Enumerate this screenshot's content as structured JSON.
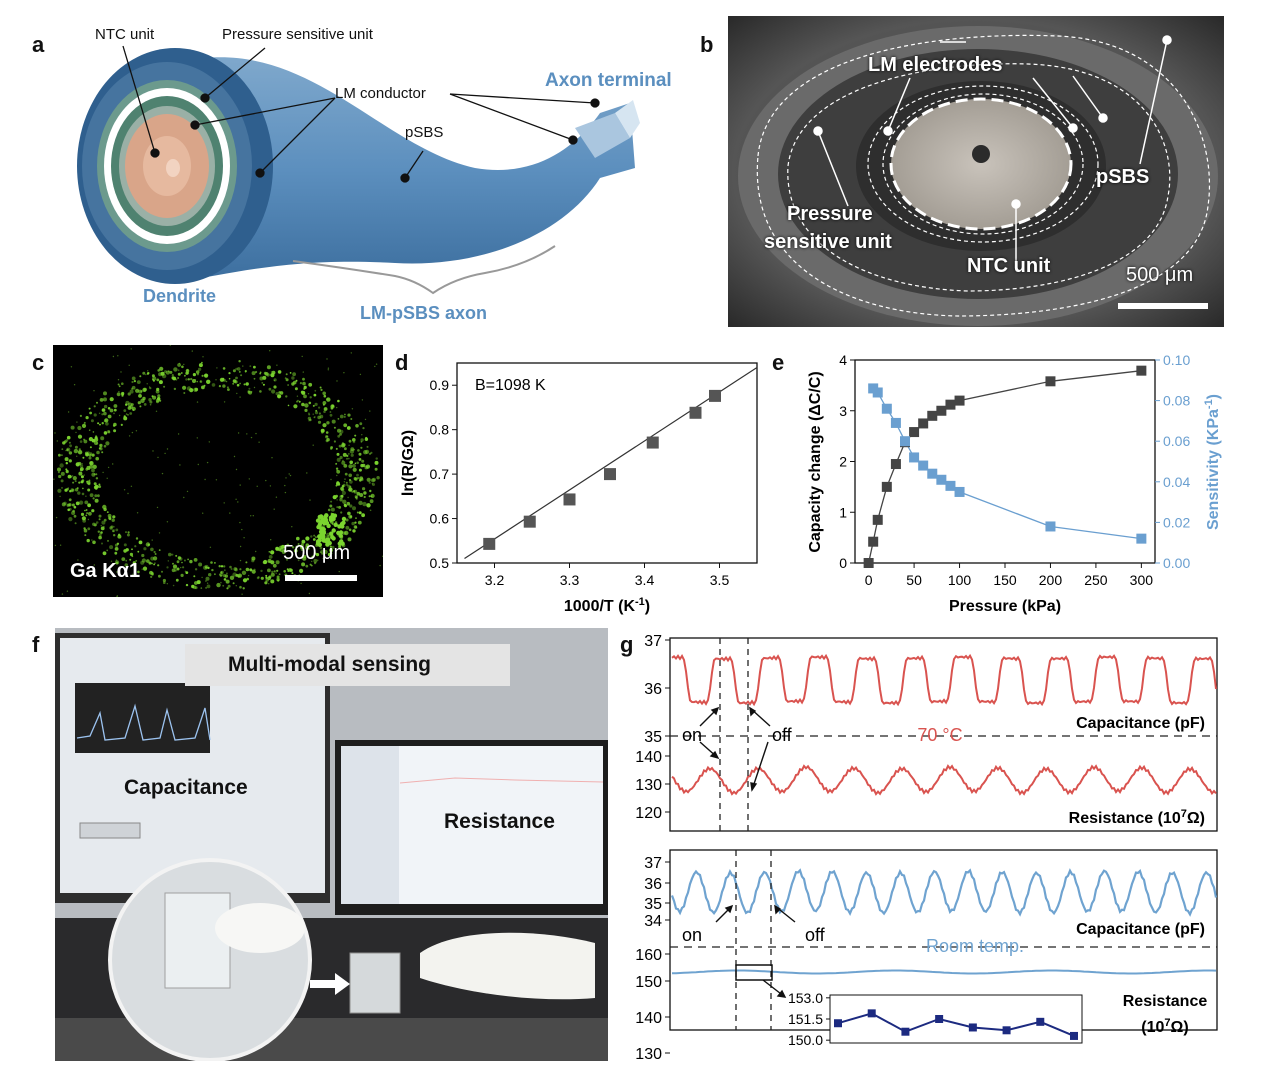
{
  "panels": {
    "a": {
      "letter": "a",
      "labels": {
        "ntc_unit": "NTC unit",
        "pressure_unit": "Pressure sensitive unit",
        "lm_conductor": "LM conductor",
        "axon_terminal": "Axon terminal",
        "psbs": "pSBS",
        "dendrite": "Dendrite",
        "axon": "LM-pSBS axon"
      }
    },
    "b": {
      "letter": "b",
      "labels": {
        "lm_electrodes": "LM electrodes",
        "psbs": "pSBS",
        "pressure_unit_1": "Pressure",
        "pressure_unit_2": "sensitive unit",
        "ntc_unit": "NTC unit",
        "scale": "500 μm"
      }
    },
    "c": {
      "letter": "c",
      "labels": {
        "element": "Ga Kα1",
        "scale": "500 μm"
      }
    },
    "d": {
      "letter": "d"
    },
    "e": {
      "letter": "e"
    },
    "f": {
      "letter": "f",
      "labels": {
        "banner": "Multi-modal sensing",
        "capacitance": "Capacitance",
        "resistance": "Resistance"
      }
    },
    "g": {
      "letter": "g",
      "top": {
        "temp_label": "70 °C",
        "on": "on",
        "off": "off",
        "cap_label": "Capacitance (pF)",
        "res_label": "Resistance (10",
        "res_sup": "7",
        "res_unit": "Ω)"
      },
      "bottom": {
        "temp_label": "Room temp.",
        "on": "on",
        "off": "off",
        "cap_label": "Capacitance (pF)",
        "res_label_1": "Resistance",
        "res_label_2": "(10",
        "res_sup": "7",
        "res_unit": "Ω)"
      }
    }
  },
  "chart_data": [
    {
      "id": "d",
      "type": "scatter",
      "annotation": "B=1098 K",
      "xlabel": "1000/T (K",
      "xlabel_sup": "-1",
      "xlabel_end": ")",
      "ylabel": "ln(R/GΩ)",
      "xlim": [
        3.15,
        3.55
      ],
      "ylim": [
        0.5,
        0.95
      ],
      "xticks": [
        3.2,
        3.3,
        3.4,
        3.5
      ],
      "yticks": [
        0.5,
        0.6,
        0.7,
        0.8,
        0.9
      ],
      "x": [
        3.193,
        3.247,
        3.3,
        3.354,
        3.411,
        3.468,
        3.494
      ],
      "y": [
        0.543,
        0.593,
        0.643,
        0.7,
        0.771,
        0.838,
        0.876
      ],
      "fit": [
        [
          3.16,
          0.51
        ],
        [
          3.55,
          0.94
        ]
      ],
      "colors": {
        "marker": "#555555",
        "line": "#333333"
      }
    },
    {
      "id": "e",
      "type": "line",
      "xlabel": "Pressure (kPa)",
      "ylabel": "Capacity change (ΔC/C)",
      "ylabel2": "Sensitivity (KPa",
      "ylabel2_sup": "-1",
      "ylabel2_end": ")",
      "xlim": [
        -15,
        315
      ],
      "ylim": [
        0,
        4.0
      ],
      "ylim2": [
        0,
        0.1
      ],
      "xticks": [
        0,
        50,
        100,
        150,
        200,
        250,
        300
      ],
      "yticks": [
        0,
        1,
        2,
        3,
        4
      ],
      "yticks2": [
        "0.00",
        "0.02",
        "0.04",
        "0.06",
        "0.08",
        "0.10"
      ],
      "series": [
        {
          "axis": "left",
          "color": "#444444",
          "x": [
            0,
            5,
            10,
            20,
            30,
            40,
            50,
            60,
            70,
            80,
            90,
            100,
            200,
            300
          ],
          "y": [
            0,
            0.42,
            0.85,
            1.5,
            1.95,
            2.38,
            2.58,
            2.75,
            2.9,
            3.0,
            3.12,
            3.2,
            3.58,
            3.79
          ]
        },
        {
          "axis": "right",
          "color": "#6a9fd0",
          "x": [
            5,
            10,
            20,
            30,
            40,
            50,
            60,
            70,
            80,
            90,
            100,
            200,
            300
          ],
          "y": [
            0.086,
            0.084,
            0.076,
            0.069,
            0.06,
            0.052,
            0.048,
            0.044,
            0.041,
            0.038,
            0.035,
            0.018,
            0.012
          ]
        }
      ]
    },
    {
      "id": "g-top",
      "type": "line",
      "colors": {
        "line": "#d9534f"
      },
      "cap_yticks": [
        35,
        36,
        37
      ],
      "res_yticks": [
        120,
        130,
        140
      ],
      "dashed_vertical_labels": [
        "on",
        "off"
      ]
    },
    {
      "id": "g-bottom",
      "type": "line",
      "colors": {
        "line": "#6fa3d0",
        "inset": "#1c2a80"
      },
      "cap_yticks": [
        34,
        35,
        36,
        37
      ],
      "res_yticks": [
        130,
        140,
        150,
        160
      ],
      "inset_yticks": [
        "150.0",
        "151.5",
        "153.0"
      ],
      "inset_values": [
        151.2,
        151.9,
        150.6,
        151.5,
        150.9,
        150.7,
        151.3,
        150.3
      ]
    }
  ]
}
